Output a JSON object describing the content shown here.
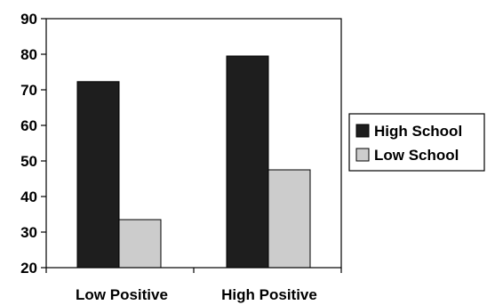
{
  "chart_data": {
    "type": "bar",
    "title": "",
    "xlabel": "",
    "ylabel": "",
    "categories": [
      "Low Positive",
      "High Positive"
    ],
    "series": [
      {
        "name": "High School",
        "values": [
          72.3,
          79.5
        ],
        "color": "#1e1e1e"
      },
      {
        "name": "Low School",
        "values": [
          33.5,
          47.5
        ],
        "color": "#cccccc"
      }
    ],
    "ylim": [
      20,
      90
    ],
    "yticks": [
      20,
      30,
      40,
      50,
      60,
      70,
      80,
      90
    ],
    "grid": false,
    "legend_position": "right"
  }
}
